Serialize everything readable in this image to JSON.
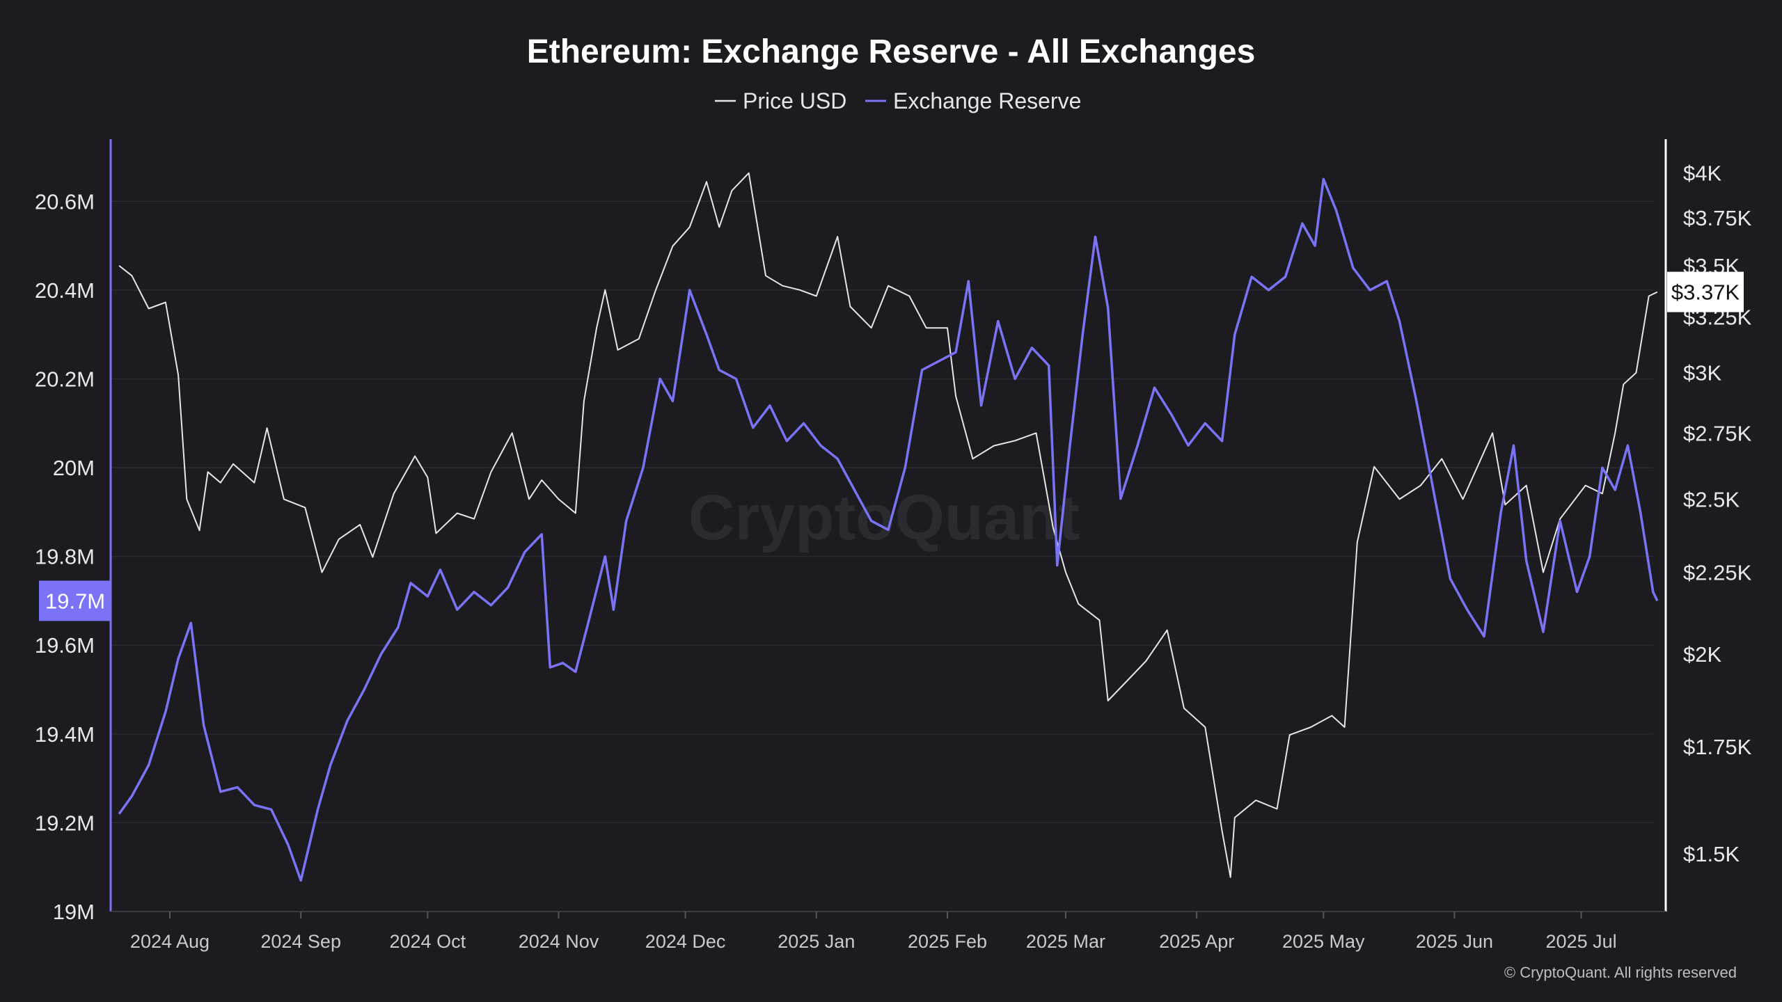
{
  "chart_data": {
    "type": "line",
    "title": "Ethereum: Exchange Reserve - All Exchanges",
    "legend": {
      "placement": "top-center",
      "entries": [
        "Price USD",
        "Exchange Reserve"
      ]
    },
    "series": [
      {
        "name": "Price USD",
        "axis": "right",
        "color": "#e6e6ea",
        "values": [
          {
            "x": "2024-07-20",
            "y": 3500
          },
          {
            "x": "2024-07-23",
            "y": 3450
          },
          {
            "x": "2024-07-27",
            "y": 3290
          },
          {
            "x": "2024-07-31",
            "y": 3320
          },
          {
            "x": "2024-08-03",
            "y": 2990
          },
          {
            "x": "2024-08-05",
            "y": 2500
          },
          {
            "x": "2024-08-08",
            "y": 2390
          },
          {
            "x": "2024-08-10",
            "y": 2600
          },
          {
            "x": "2024-08-13",
            "y": 2560
          },
          {
            "x": "2024-08-16",
            "y": 2630
          },
          {
            "x": "2024-08-21",
            "y": 2560
          },
          {
            "x": "2024-08-24",
            "y": 2770
          },
          {
            "x": "2024-08-28",
            "y": 2500
          },
          {
            "x": "2024-09-02",
            "y": 2470
          },
          {
            "x": "2024-09-06",
            "y": 2250
          },
          {
            "x": "2024-09-10",
            "y": 2360
          },
          {
            "x": "2024-09-15",
            "y": 2410
          },
          {
            "x": "2024-09-18",
            "y": 2300
          },
          {
            "x": "2024-09-23",
            "y": 2520
          },
          {
            "x": "2024-09-28",
            "y": 2660
          },
          {
            "x": "2024-10-01",
            "y": 2580
          },
          {
            "x": "2024-10-03",
            "y": 2380
          },
          {
            "x": "2024-10-08",
            "y": 2450
          },
          {
            "x": "2024-10-12",
            "y": 2430
          },
          {
            "x": "2024-10-16",
            "y": 2600
          },
          {
            "x": "2024-10-21",
            "y": 2750
          },
          {
            "x": "2024-10-25",
            "y": 2500
          },
          {
            "x": "2024-10-28",
            "y": 2570
          },
          {
            "x": "2024-11-01",
            "y": 2500
          },
          {
            "x": "2024-11-05",
            "y": 2450
          },
          {
            "x": "2024-11-07",
            "y": 2880
          },
          {
            "x": "2024-11-10",
            "y": 3200
          },
          {
            "x": "2024-11-12",
            "y": 3380
          },
          {
            "x": "2024-11-15",
            "y": 3100
          },
          {
            "x": "2024-11-20",
            "y": 3150
          },
          {
            "x": "2024-11-24",
            "y": 3380
          },
          {
            "x": "2024-11-28",
            "y": 3600
          },
          {
            "x": "2024-12-02",
            "y": 3700
          },
          {
            "x": "2024-12-06",
            "y": 3950
          },
          {
            "x": "2024-12-09",
            "y": 3700
          },
          {
            "x": "2024-12-12",
            "y": 3900
          },
          {
            "x": "2024-12-16",
            "y": 4000
          },
          {
            "x": "2024-12-20",
            "y": 3450
          },
          {
            "x": "2024-12-24",
            "y": 3400
          },
          {
            "x": "2024-12-28",
            "y": 3380
          },
          {
            "x": "2025-01-01",
            "y": 3350
          },
          {
            "x": "2025-01-06",
            "y": 3650
          },
          {
            "x": "2025-01-09",
            "y": 3300
          },
          {
            "x": "2025-01-14",
            "y": 3200
          },
          {
            "x": "2025-01-18",
            "y": 3400
          },
          {
            "x": "2025-01-23",
            "y": 3350
          },
          {
            "x": "2025-01-27",
            "y": 3200
          },
          {
            "x": "2025-02-01",
            "y": 3200
          },
          {
            "x": "2025-02-03",
            "y": 2900
          },
          {
            "x": "2025-02-07",
            "y": 2650
          },
          {
            "x": "2025-02-12",
            "y": 2700
          },
          {
            "x": "2025-02-17",
            "y": 2720
          },
          {
            "x": "2025-02-22",
            "y": 2750
          },
          {
            "x": "2025-02-26",
            "y": 2400
          },
          {
            "x": "2025-03-01",
            "y": 2250
          },
          {
            "x": "2025-03-04",
            "y": 2150
          },
          {
            "x": "2025-03-09",
            "y": 2100
          },
          {
            "x": "2025-03-11",
            "y": 1870
          },
          {
            "x": "2025-03-16",
            "y": 1930
          },
          {
            "x": "2025-03-20",
            "y": 1980
          },
          {
            "x": "2025-03-25",
            "y": 2070
          },
          {
            "x": "2025-03-29",
            "y": 1850
          },
          {
            "x": "2025-04-03",
            "y": 1800
          },
          {
            "x": "2025-04-07",
            "y": 1550
          },
          {
            "x": "2025-04-09",
            "y": 1450
          },
          {
            "x": "2025-04-10",
            "y": 1580
          },
          {
            "x": "2025-04-15",
            "y": 1620
          },
          {
            "x": "2025-04-20",
            "y": 1600
          },
          {
            "x": "2025-04-23",
            "y": 1780
          },
          {
            "x": "2025-04-28",
            "y": 1800
          },
          {
            "x": "2025-05-03",
            "y": 1830
          },
          {
            "x": "2025-05-06",
            "y": 1800
          },
          {
            "x": "2025-05-09",
            "y": 2350
          },
          {
            "x": "2025-05-13",
            "y": 2620
          },
          {
            "x": "2025-05-19",
            "y": 2500
          },
          {
            "x": "2025-05-24",
            "y": 2550
          },
          {
            "x": "2025-05-29",
            "y": 2650
          },
          {
            "x": "2025-06-03",
            "y": 2500
          },
          {
            "x": "2025-06-10",
            "y": 2750
          },
          {
            "x": "2025-06-13",
            "y": 2480
          },
          {
            "x": "2025-06-18",
            "y": 2550
          },
          {
            "x": "2025-06-22",
            "y": 2250
          },
          {
            "x": "2025-06-26",
            "y": 2430
          },
          {
            "x": "2025-07-02",
            "y": 2550
          },
          {
            "x": "2025-07-06",
            "y": 2520
          },
          {
            "x": "2025-07-09",
            "y": 2750
          },
          {
            "x": "2025-07-11",
            "y": 2950
          },
          {
            "x": "2025-07-14",
            "y": 3000
          },
          {
            "x": "2025-07-17",
            "y": 3350
          },
          {
            "x": "2025-07-19",
            "y": 3370
          }
        ]
      },
      {
        "name": "Exchange Reserve",
        "axis": "left",
        "color": "#7b73f5",
        "values": [
          {
            "x": "2024-07-20",
            "y": 19220000
          },
          {
            "x": "2024-07-23",
            "y": 19260000
          },
          {
            "x": "2024-07-27",
            "y": 19330000
          },
          {
            "x": "2024-07-31",
            "y": 19450000
          },
          {
            "x": "2024-08-03",
            "y": 19570000
          },
          {
            "x": "2024-08-06",
            "y": 19650000
          },
          {
            "x": "2024-08-09",
            "y": 19420000
          },
          {
            "x": "2024-08-13",
            "y": 19270000
          },
          {
            "x": "2024-08-17",
            "y": 19280000
          },
          {
            "x": "2024-08-21",
            "y": 19240000
          },
          {
            "x": "2024-08-25",
            "y": 19230000
          },
          {
            "x": "2024-08-29",
            "y": 19150000
          },
          {
            "x": "2024-09-01",
            "y": 19070000
          },
          {
            "x": "2024-09-05",
            "y": 19230000
          },
          {
            "x": "2024-09-08",
            "y": 19330000
          },
          {
            "x": "2024-09-12",
            "y": 19430000
          },
          {
            "x": "2024-09-16",
            "y": 19500000
          },
          {
            "x": "2024-09-20",
            "y": 19580000
          },
          {
            "x": "2024-09-24",
            "y": 19640000
          },
          {
            "x": "2024-09-27",
            "y": 19740000
          },
          {
            "x": "2024-10-01",
            "y": 19710000
          },
          {
            "x": "2024-10-04",
            "y": 19770000
          },
          {
            "x": "2024-10-08",
            "y": 19680000
          },
          {
            "x": "2024-10-12",
            "y": 19720000
          },
          {
            "x": "2024-10-16",
            "y": 19690000
          },
          {
            "x": "2024-10-20",
            "y": 19730000
          },
          {
            "x": "2024-10-24",
            "y": 19810000
          },
          {
            "x": "2024-10-28",
            "y": 19850000
          },
          {
            "x": "2024-10-30",
            "y": 19550000
          },
          {
            "x": "2024-11-02",
            "y": 19560000
          },
          {
            "x": "2024-11-05",
            "y": 19540000
          },
          {
            "x": "2024-11-08",
            "y": 19650000
          },
          {
            "x": "2024-11-12",
            "y": 19800000
          },
          {
            "x": "2024-11-14",
            "y": 19680000
          },
          {
            "x": "2024-11-17",
            "y": 19880000
          },
          {
            "x": "2024-11-21",
            "y": 20000000
          },
          {
            "x": "2024-11-25",
            "y": 20200000
          },
          {
            "x": "2024-11-28",
            "y": 20150000
          },
          {
            "x": "2024-12-02",
            "y": 20400000
          },
          {
            "x": "2024-12-06",
            "y": 20300000
          },
          {
            "x": "2024-12-09",
            "y": 20220000
          },
          {
            "x": "2024-12-13",
            "y": 20200000
          },
          {
            "x": "2024-12-17",
            "y": 20090000
          },
          {
            "x": "2024-12-21",
            "y": 20140000
          },
          {
            "x": "2024-12-25",
            "y": 20060000
          },
          {
            "x": "2024-12-29",
            "y": 20100000
          },
          {
            "x": "2025-01-02",
            "y": 20050000
          },
          {
            "x": "2025-01-06",
            "y": 20020000
          },
          {
            "x": "2025-01-10",
            "y": 19950000
          },
          {
            "x": "2025-01-14",
            "y": 19880000
          },
          {
            "x": "2025-01-18",
            "y": 19860000
          },
          {
            "x": "2025-01-22",
            "y": 20000000
          },
          {
            "x": "2025-01-26",
            "y": 20220000
          },
          {
            "x": "2025-01-30",
            "y": 20240000
          },
          {
            "x": "2025-02-03",
            "y": 20260000
          },
          {
            "x": "2025-02-06",
            "y": 20420000
          },
          {
            "x": "2025-02-09",
            "y": 20140000
          },
          {
            "x": "2025-02-13",
            "y": 20330000
          },
          {
            "x": "2025-02-17",
            "y": 20200000
          },
          {
            "x": "2025-02-21",
            "y": 20270000
          },
          {
            "x": "2025-02-25",
            "y": 20230000
          },
          {
            "x": "2025-02-27",
            "y": 19780000
          },
          {
            "x": "2025-03-02",
            "y": 20050000
          },
          {
            "x": "2025-03-05",
            "y": 20300000
          },
          {
            "x": "2025-03-08",
            "y": 20520000
          },
          {
            "x": "2025-03-11",
            "y": 20360000
          },
          {
            "x": "2025-03-14",
            "y": 19930000
          },
          {
            "x": "2025-03-18",
            "y": 20050000
          },
          {
            "x": "2025-03-22",
            "y": 20180000
          },
          {
            "x": "2025-03-26",
            "y": 20120000
          },
          {
            "x": "2025-03-30",
            "y": 20050000
          },
          {
            "x": "2025-04-03",
            "y": 20100000
          },
          {
            "x": "2025-04-07",
            "y": 20060000
          },
          {
            "x": "2025-04-10",
            "y": 20300000
          },
          {
            "x": "2025-04-14",
            "y": 20430000
          },
          {
            "x": "2025-04-18",
            "y": 20400000
          },
          {
            "x": "2025-04-22",
            "y": 20430000
          },
          {
            "x": "2025-04-26",
            "y": 20550000
          },
          {
            "x": "2025-04-29",
            "y": 20500000
          },
          {
            "x": "2025-05-01",
            "y": 20650000
          },
          {
            "x": "2025-05-04",
            "y": 20580000
          },
          {
            "x": "2025-05-08",
            "y": 20450000
          },
          {
            "x": "2025-05-12",
            "y": 20400000
          },
          {
            "x": "2025-05-16",
            "y": 20420000
          },
          {
            "x": "2025-05-19",
            "y": 20330000
          },
          {
            "x": "2025-05-23",
            "y": 20150000
          },
          {
            "x": "2025-05-27",
            "y": 19950000
          },
          {
            "x": "2025-05-31",
            "y": 19750000
          },
          {
            "x": "2025-06-04",
            "y": 19680000
          },
          {
            "x": "2025-06-08",
            "y": 19620000
          },
          {
            "x": "2025-06-12",
            "y": 19900000
          },
          {
            "x": "2025-06-15",
            "y": 20050000
          },
          {
            "x": "2025-06-18",
            "y": 19790000
          },
          {
            "x": "2025-06-22",
            "y": 19630000
          },
          {
            "x": "2025-06-26",
            "y": 19880000
          },
          {
            "x": "2025-06-30",
            "y": 19720000
          },
          {
            "x": "2025-07-03",
            "y": 19800000
          },
          {
            "x": "2025-07-06",
            "y": 20000000
          },
          {
            "x": "2025-07-09",
            "y": 19950000
          },
          {
            "x": "2025-07-12",
            "y": 20050000
          },
          {
            "x": "2025-07-15",
            "y": 19900000
          },
          {
            "x": "2025-07-18",
            "y": 19720000
          },
          {
            "x": "2025-07-19",
            "y": 19700000
          }
        ]
      }
    ],
    "x_axis": {
      "type": "date",
      "range": [
        "2024-07-18",
        "2025-07-21"
      ],
      "ticks": [
        {
          "x": "2024-08-01",
          "label": "2024 Aug"
        },
        {
          "x": "2024-09-01",
          "label": "2024 Sep"
        },
        {
          "x": "2024-10-01",
          "label": "2024 Oct"
        },
        {
          "x": "2024-11-01",
          "label": "2024 Nov"
        },
        {
          "x": "2024-12-01",
          "label": "2024 Dec"
        },
        {
          "x": "2025-01-01",
          "label": "2025 Jan"
        },
        {
          "x": "2025-02-01",
          "label": "2025 Feb"
        },
        {
          "x": "2025-03-01",
          "label": "2025 Mar"
        },
        {
          "x": "2025-04-01",
          "label": "2025 Apr"
        },
        {
          "x": "2025-05-01",
          "label": "2025 May"
        },
        {
          "x": "2025-06-01",
          "label": "2025 Jun"
        },
        {
          "x": "2025-07-01",
          "label": "2025 Jul"
        }
      ]
    },
    "y_left": {
      "scale": "linear",
      "range": [
        19000000,
        20740000
      ],
      "ticks": [
        {
          "value": 19000000,
          "label": "19M"
        },
        {
          "value": 19200000,
          "label": "19.2M"
        },
        {
          "value": 19400000,
          "label": "19.4M"
        },
        {
          "value": 19600000,
          "label": "19.6M"
        },
        {
          "value": 19800000,
          "label": "19.8M"
        },
        {
          "value": 20000000,
          "label": "20M"
        },
        {
          "value": 20200000,
          "label": "20.2M"
        },
        {
          "value": 20400000,
          "label": "20.4M"
        },
        {
          "value": 20600000,
          "label": "20.6M"
        }
      ],
      "current_label": {
        "value": 19700000,
        "label": "19.7M"
      }
    },
    "y_right": {
      "scale": "log",
      "range": [
        1380,
        4200
      ],
      "ticks": [
        {
          "value": 1500,
          "label": "$1.5K"
        },
        {
          "value": 1750,
          "label": "$1.75K"
        },
        {
          "value": 2000,
          "label": "$2K"
        },
        {
          "value": 2250,
          "label": "$2.25K"
        },
        {
          "value": 2500,
          "label": "$2.5K"
        },
        {
          "value": 2750,
          "label": "$2.75K"
        },
        {
          "value": 3000,
          "label": "$3K"
        },
        {
          "value": 3250,
          "label": "$3.25K"
        },
        {
          "value": 3500,
          "label": "$3.5K"
        },
        {
          "value": 3750,
          "label": "$3.75K"
        },
        {
          "value": 4000,
          "label": "$4K"
        }
      ],
      "current_label": {
        "value": 3370,
        "label": "$3.37K"
      }
    },
    "grid": true,
    "watermark": "CryptoQuant",
    "copyright": "© CryptoQuant. All rights reserved"
  },
  "colors": {
    "background": "#1b1b20",
    "price_line": "#e6e6ea",
    "reserve_line": "#7b73f5",
    "grid": "#2a2a31"
  }
}
